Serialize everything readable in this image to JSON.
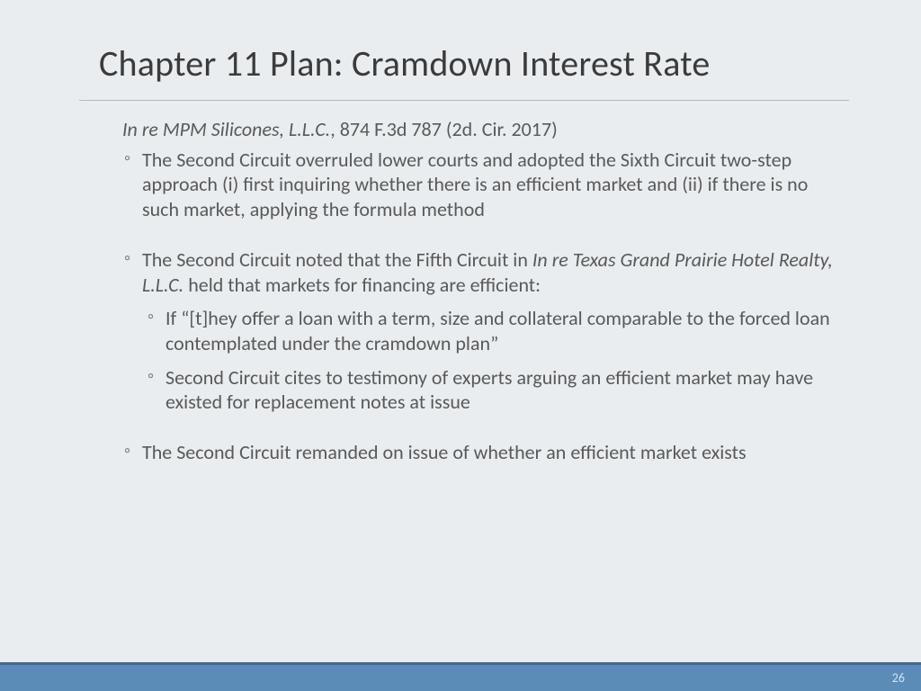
{
  "title": "Chapter 11 Plan:  Cramdown Interest Rate",
  "case": {
    "name": "In re MPM Silicones, L.L.C.",
    "citation": ", 874 F.3d 787 (2d. Cir. 2017)"
  },
  "bullets": [
    {
      "text": "The Second Circuit overruled lower courts and adopted the Sixth Circuit two-step approach (i) first inquiring whether there is an efficient market and (ii) if there is no such market, applying the formula method"
    },
    {
      "pre": "The Second Circuit noted that the Fifth Circuit in ",
      "italic": "In re Texas Grand Prairie Hotel Realty, L.L.C.",
      "post": " held that markets for financing are efficient:",
      "sub": [
        "If “[t]hey offer a loan with a term, size and collateral comparable to the forced loan contemplated under the cramdown plan”",
        "Second Circuit cites to testimony of experts arguing an efficient market may have existed for replacement notes at issue"
      ]
    },
    {
      "text": "The Second Circuit remanded on issue of whether an efficient market exists"
    }
  ],
  "page_number": "26",
  "style": {
    "background_color": "#e9edf0",
    "title_color": "#3b3b3b",
    "body_color": "#595959",
    "divider_color": "#b7b7b7",
    "footer_color": "#5b8cb8",
    "footer_border_color": "#3d6a95",
    "page_num_color": "#d6e1ec",
    "title_fontsize": 40,
    "body_fontsize": 22,
    "pagenum_fontsize": 14,
    "slide_width": 1024,
    "slide_height": 768
  }
}
